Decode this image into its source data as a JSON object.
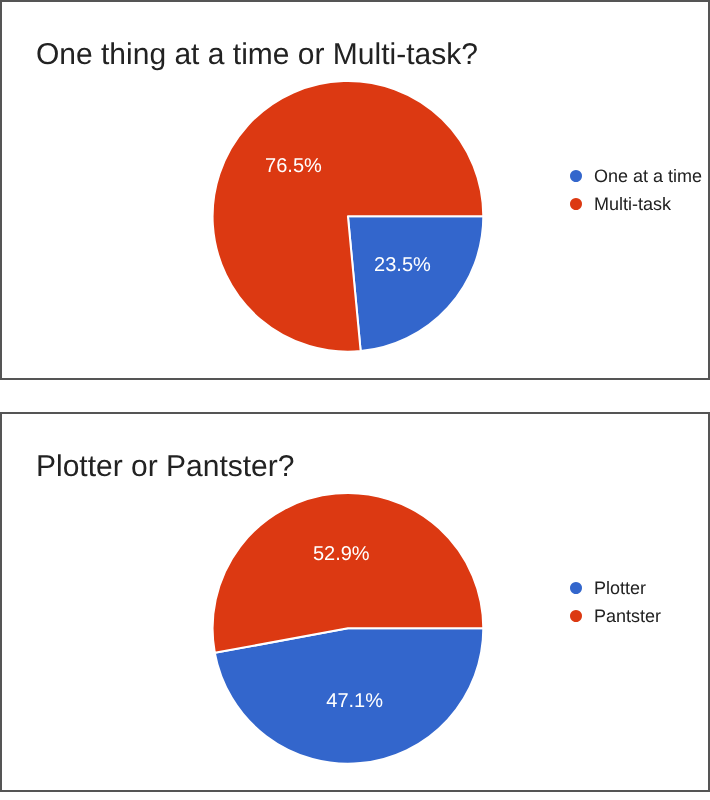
{
  "chart_data": [
    {
      "type": "pie",
      "title": "One thing at a time or Multi-task?",
      "categories": [
        "One at a time",
        "Multi-task"
      ],
      "values": [
        23.5,
        76.5
      ],
      "value_labels": [
        "23.5%",
        "76.5%"
      ],
      "colors": [
        "#3366cc",
        "#dc3912"
      ],
      "legend": "right"
    },
    {
      "type": "pie",
      "title": "Plotter or Pantster?",
      "categories": [
        "Plotter",
        "Pantster"
      ],
      "values": [
        47.1,
        52.9
      ],
      "value_labels": [
        "47.1%",
        "52.9%"
      ],
      "colors": [
        "#3366cc",
        "#dc3912"
      ],
      "legend": "right"
    }
  ]
}
